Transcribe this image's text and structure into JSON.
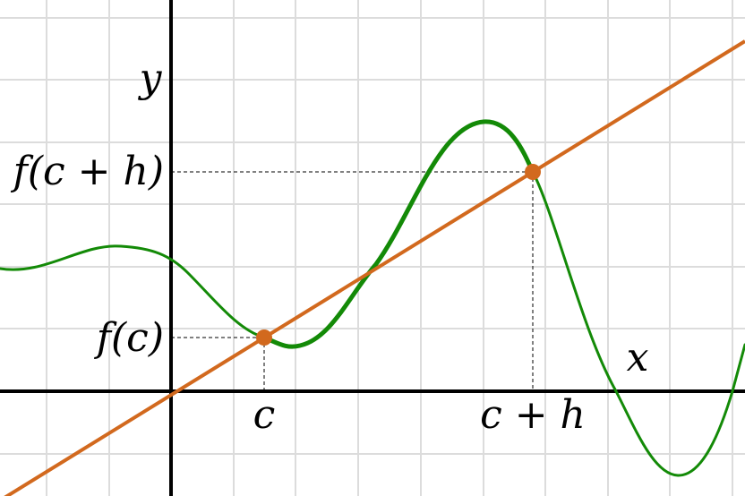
{
  "axes": {
    "x_label": "x",
    "y_label": "y"
  },
  "labels": {
    "f_c_plus_h": "f(c + h)",
    "f_c": "f(c)",
    "c": "c",
    "c_plus_h": "c + h"
  }
}
